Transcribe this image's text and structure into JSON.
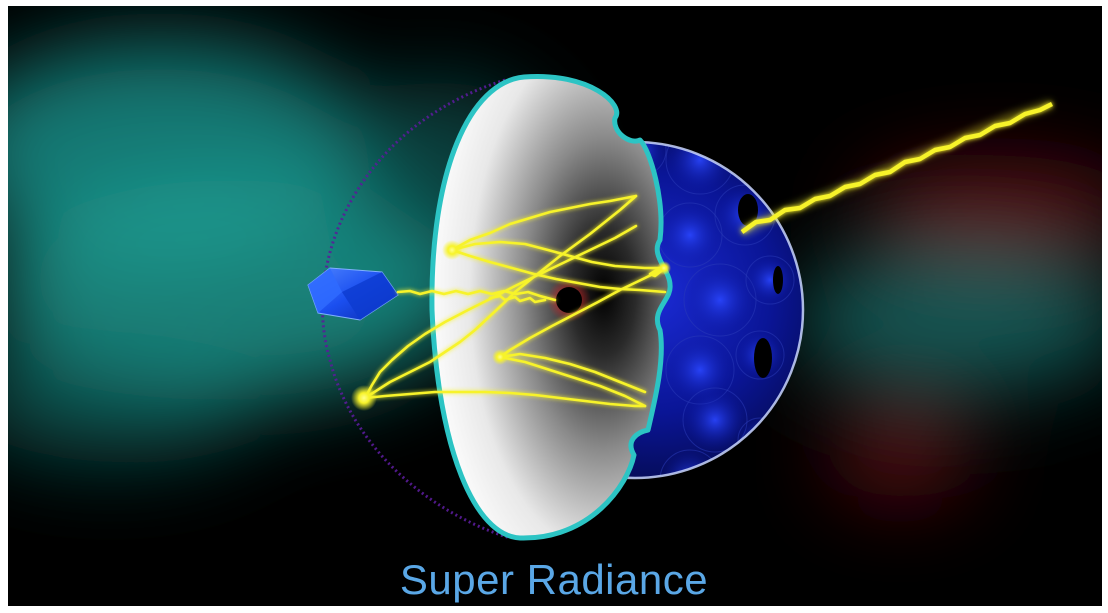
{
  "caption": {
    "text": "Super Radiance"
  },
  "colors": {
    "background": "#000000",
    "caption_text": "#5aa7e6",
    "teal_glow": "#1fa89e",
    "red_glow": "#c1272d",
    "mirror_rim": "#2cc4c4",
    "sphere_shell": "#0a1596",
    "photon_path": "#f7f32a",
    "source_crystal": "#1b4ff0",
    "outer_orbit": "#5a1c9a"
  },
  "icons": {
    "source": "photon-source-crystal-icon",
    "core": "black-hole-core-icon",
    "output_beam": "coherent-light-beam-icon"
  }
}
